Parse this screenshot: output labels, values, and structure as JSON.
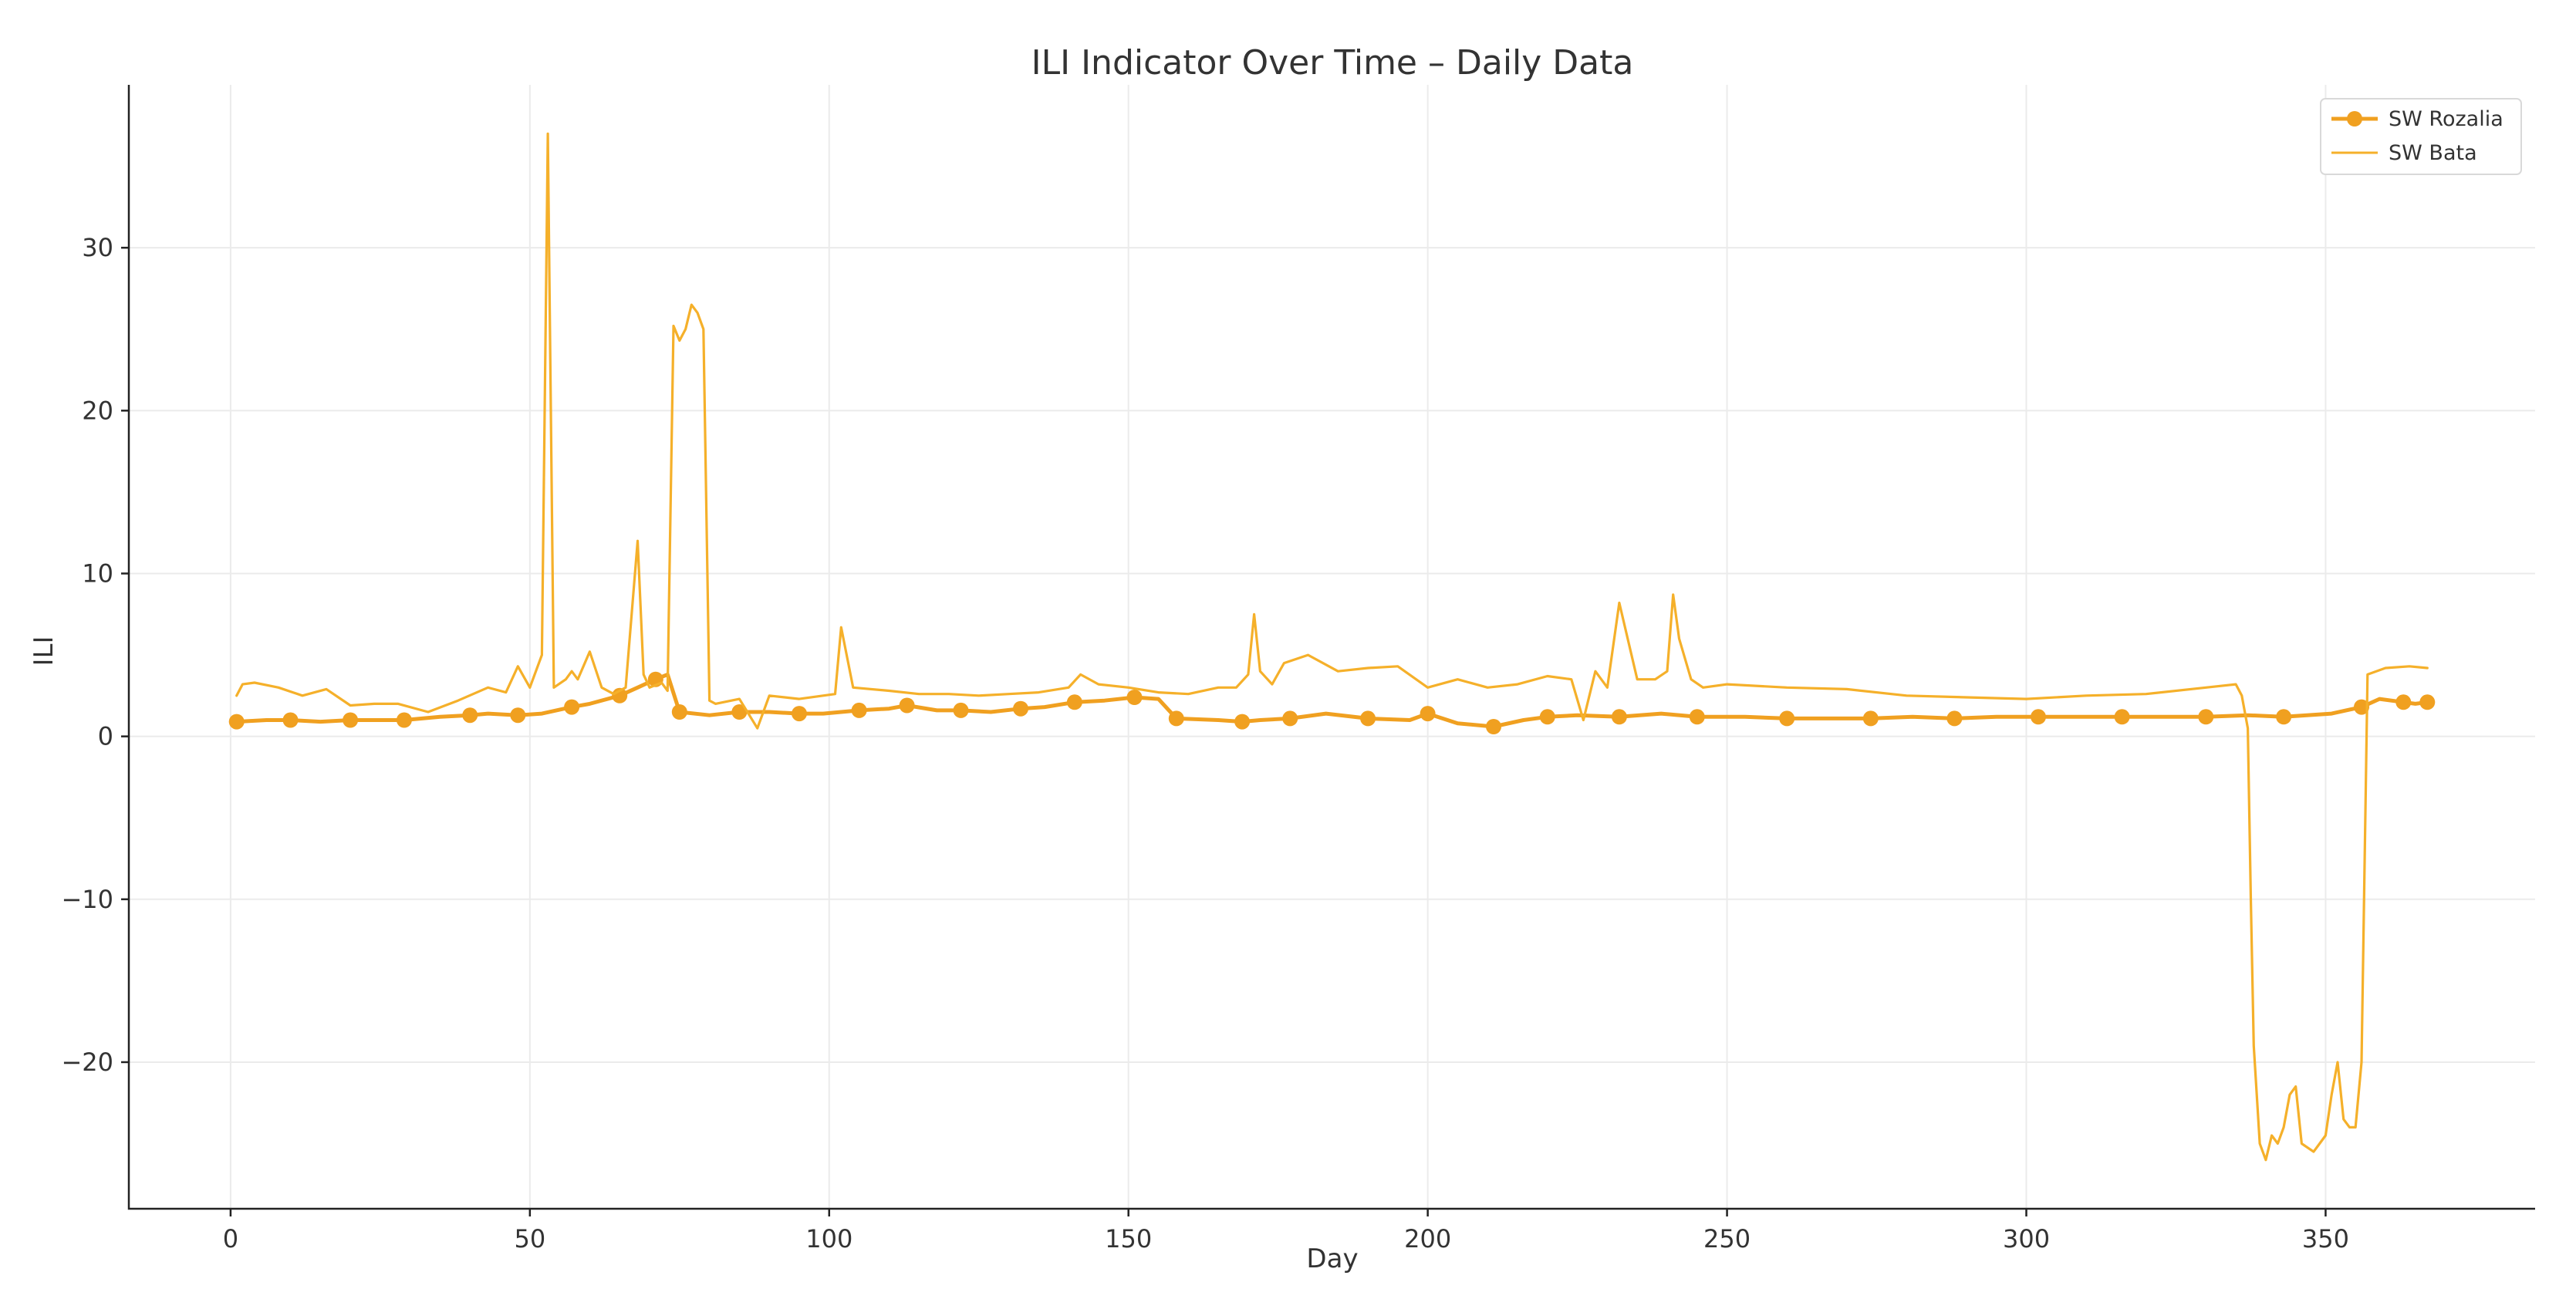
{
  "chart_data": {
    "type": "line",
    "title": "ILI Indicator Over Time – Daily Data",
    "xlabel": "Day",
    "ylabel": "ILI",
    "xlim": [
      -17,
      385
    ],
    "ylim": [
      -29,
      40
    ],
    "xticks": [
      0,
      50,
      100,
      150,
      200,
      250,
      300,
      350
    ],
    "yticks": [
      -20,
      -10,
      0,
      10,
      20,
      30
    ],
    "ytick_labels": [
      "−20",
      "−10",
      "0",
      "10",
      "20",
      "30"
    ],
    "grid": true,
    "legend": "top-right",
    "series": [
      {
        "name": "SW Rozalia",
        "color": "#f0a020",
        "marker": "circle",
        "markevery": 14,
        "x": [
          1,
          6,
          10,
          15,
          20,
          25,
          29,
          35,
          40,
          43,
          48,
          52,
          57,
          60,
          65,
          68,
          71,
          73,
          75,
          80,
          85,
          90,
          95,
          99,
          105,
          110,
          113,
          118,
          122,
          127,
          132,
          136,
          141,
          146,
          151,
          155,
          158,
          165,
          169,
          172,
          177,
          183,
          190,
          197,
          200,
          205,
          211,
          216,
          220,
          225,
          232,
          239,
          245,
          253,
          260,
          267,
          274,
          281,
          288,
          295,
          302,
          309,
          316,
          323,
          330,
          337,
          343,
          351,
          356,
          359,
          363,
          365,
          367
        ],
        "y": [
          0.9,
          1.0,
          1.0,
          0.9,
          1.0,
          1.0,
          1.0,
          1.2,
          1.3,
          1.4,
          1.3,
          1.4,
          1.8,
          2.0,
          2.5,
          3.0,
          3.5,
          3.8,
          1.5,
          1.3,
          1.5,
          1.5,
          1.4,
          1.4,
          1.6,
          1.7,
          1.9,
          1.6,
          1.6,
          1.5,
          1.7,
          1.8,
          2.1,
          2.2,
          2.4,
          2.3,
          1.1,
          1.0,
          0.9,
          1.0,
          1.1,
          1.4,
          1.1,
          1.0,
          1.4,
          0.8,
          0.6,
          1.0,
          1.2,
          1.3,
          1.2,
          1.4,
          1.2,
          1.2,
          1.1,
          1.1,
          1.1,
          1.2,
          1.1,
          1.2,
          1.2,
          1.2,
          1.2,
          1.2,
          1.2,
          1.3,
          1.2,
          1.4,
          1.8,
          2.3,
          2.1,
          2.0,
          2.1
        ]
      },
      {
        "name": "SW Bata",
        "color": "#f5b02a",
        "x": [
          1,
          2,
          4,
          8,
          12,
          16,
          20,
          24,
          28,
          33,
          38,
          43,
          46,
          48,
          50,
          52,
          53,
          54,
          56,
          57,
          58,
          60,
          62,
          64,
          66,
          68,
          69,
          70,
          72,
          73,
          74,
          75,
          76,
          77,
          78,
          79,
          80,
          81,
          85,
          88,
          90,
          95,
          99,
          101,
          102,
          104,
          110,
          115,
          120,
          125,
          130,
          135,
          140,
          142,
          145,
          150,
          155,
          160,
          165,
          168,
          170,
          171,
          172,
          174,
          176,
          180,
          185,
          190,
          195,
          200,
          205,
          210,
          215,
          220,
          224,
          226,
          228,
          230,
          232,
          235,
          238,
          240,
          241,
          242,
          244,
          246,
          250,
          260,
          270,
          280,
          290,
          300,
          310,
          320,
          330,
          335,
          336,
          337,
          337.5,
          338,
          339,
          340,
          341,
          342,
          343,
          344,
          345,
          346,
          348,
          349,
          350,
          351,
          352,
          353,
          354,
          355,
          356,
          357,
          360,
          364,
          367
        ],
        "y": [
          2.5,
          3.2,
          3.3,
          3.0,
          2.5,
          2.9,
          1.9,
          2.0,
          2.0,
          1.5,
          2.2,
          3.0,
          2.7,
          4.3,
          3.0,
          5.0,
          37.0,
          3.0,
          3.5,
          4.0,
          3.5,
          5.2,
          3.0,
          2.6,
          3.0,
          12.0,
          3.8,
          3.0,
          3.3,
          2.8,
          25.2,
          24.3,
          25.0,
          26.5,
          26.0,
          25.0,
          2.2,
          2.0,
          2.3,
          0.5,
          2.5,
          2.3,
          2.5,
          2.6,
          6.7,
          3.0,
          2.8,
          2.6,
          2.6,
          2.5,
          2.6,
          2.7,
          3.0,
          3.8,
          3.2,
          3.0,
          2.7,
          2.6,
          3.0,
          3.0,
          3.8,
          7.5,
          4.0,
          3.2,
          4.5,
          5.0,
          4.0,
          4.2,
          4.3,
          3.0,
          3.5,
          3.0,
          3.2,
          3.7,
          3.5,
          1.0,
          4.0,
          3.0,
          8.2,
          3.5,
          3.5,
          4.0,
          8.7,
          6.0,
          3.5,
          3.0,
          3.2,
          3.0,
          2.9,
          2.5,
          2.4,
          2.3,
          2.5,
          2.6,
          3.0,
          3.2,
          2.5,
          0.5,
          -10.0,
          -19.0,
          -25.0,
          -26.0,
          -24.5,
          -25.0,
          -24.0,
          -22.0,
          -21.5,
          -25.0,
          -25.5,
          -25.0,
          -24.5,
          -22.0,
          -20.0,
          -23.5,
          -24.0,
          -24.0,
          -20.0,
          3.8,
          4.2,
          4.3,
          4.2
        ]
      }
    ]
  }
}
